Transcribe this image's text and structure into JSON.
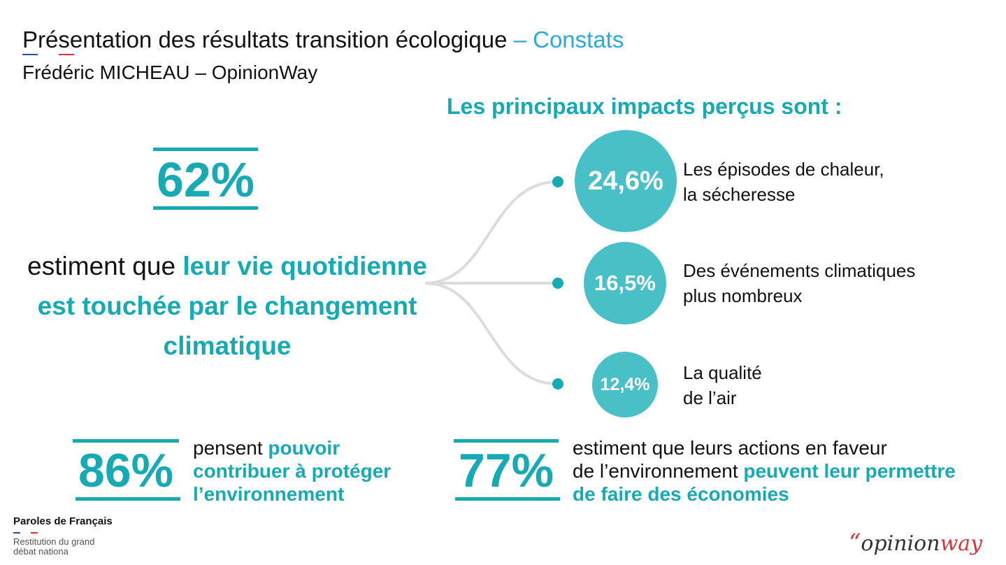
{
  "header": {
    "title_main": "Présentation des résultats transition écologique",
    "title_accent": " – Constats",
    "subtitle": "Frédéric MICHEAU – OpinionWay"
  },
  "main_stat": {
    "value": "62%",
    "text_plain": "estiment que ",
    "text_highlight": "leur vie quotidienne est touchée par le changement climatique"
  },
  "impacts": {
    "heading": "Les principaux impacts perçus sont :",
    "items": [
      {
        "value": "24,6%",
        "label_line1": "Les épisodes de chaleur,",
        "label_line2": "la sécheresse"
      },
      {
        "value": "16,5%",
        "label_line1": "Des événements climatiques",
        "label_line2": "plus nombreux"
      },
      {
        "value": "12,4%",
        "label_line1": "La qualité",
        "label_line2": "de l’air"
      }
    ]
  },
  "stat_86": {
    "value": "86%",
    "text_plain": "pensent ",
    "text_highlight_1": "pouvoir",
    "text_highlight_2": "contribuer à protéger",
    "text_highlight_3": "l’environnement"
  },
  "stat_77": {
    "value": "77%",
    "line1": "estiment que leurs actions en faveur",
    "line2_plain": "de l’environnement ",
    "line2_highlight": "peuvent leur permettre",
    "line3_highlight": "de faire des économies"
  },
  "footer": {
    "brand": "Paroles de Français",
    "sub": "Restitution du grand débat nationa"
  },
  "logo": {
    "quote": "“",
    "opinion": "opinion",
    "way": "way"
  },
  "colors": {
    "accent_teal": "#16aab5",
    "circle_fill": "#49c0c8",
    "title_accent": "#2aa9e0",
    "logo_red": "#d6333a"
  }
}
